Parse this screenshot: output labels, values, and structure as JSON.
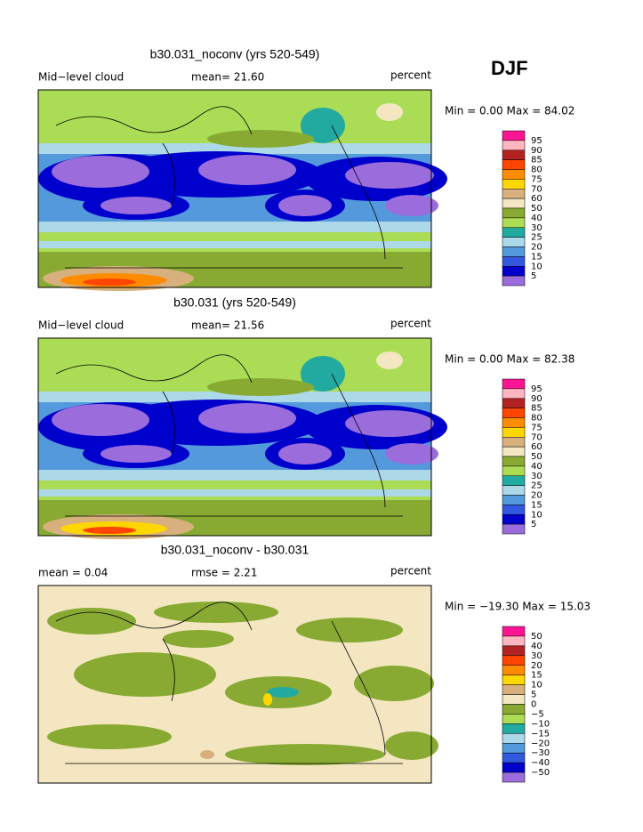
{
  "season": "DJF",
  "palette": [
    "#ff1493",
    "#ffb6c1",
    "#b22222",
    "#ff4500",
    "#ff8c00",
    "#ffd700",
    "#d8b07e",
    "#f3e6c1",
    "#88aa33",
    "#aadd55",
    "#22aaa0",
    "#acd8e8",
    "#5599dd",
    "#3358e0",
    "#0000cc",
    "#9a6cdc"
  ],
  "panels": [
    {
      "title": "b30.031_noconv (yrs 520-549)",
      "left": "Mid−level cloud",
      "middle": "mean=  21.60",
      "right": "percent",
      "minmax": "Min =   0.00 Max =  84.02",
      "colorbar": [
        "95",
        "90",
        "85",
        "80",
        "75",
        "70",
        "60",
        "50",
        "40",
        "30",
        "25",
        "20",
        "15",
        "10",
        "5"
      ]
    },
    {
      "title": "b30.031 (yrs 520-549)",
      "left": "Mid−level cloud",
      "middle": "mean=  21.56",
      "right": "percent",
      "minmax": "Min =   0.00 Max =  82.38",
      "colorbar": [
        "95",
        "90",
        "85",
        "80",
        "75",
        "70",
        "60",
        "50",
        "40",
        "30",
        "25",
        "20",
        "15",
        "10",
        "5"
      ]
    },
    {
      "title": "b30.031_noconv - b30.031",
      "left": "mean =   0.04",
      "middle": "rmse =   2.21",
      "right": "percent",
      "minmax": "Min = −19.30 Max =  15.03",
      "colorbar": [
        "50",
        "40",
        "30",
        "20",
        "15",
        "10",
        "5",
        "0",
        "−5",
        "−10",
        "−15",
        "−20",
        "−30",
        "−40",
        "−50"
      ]
    }
  ]
}
